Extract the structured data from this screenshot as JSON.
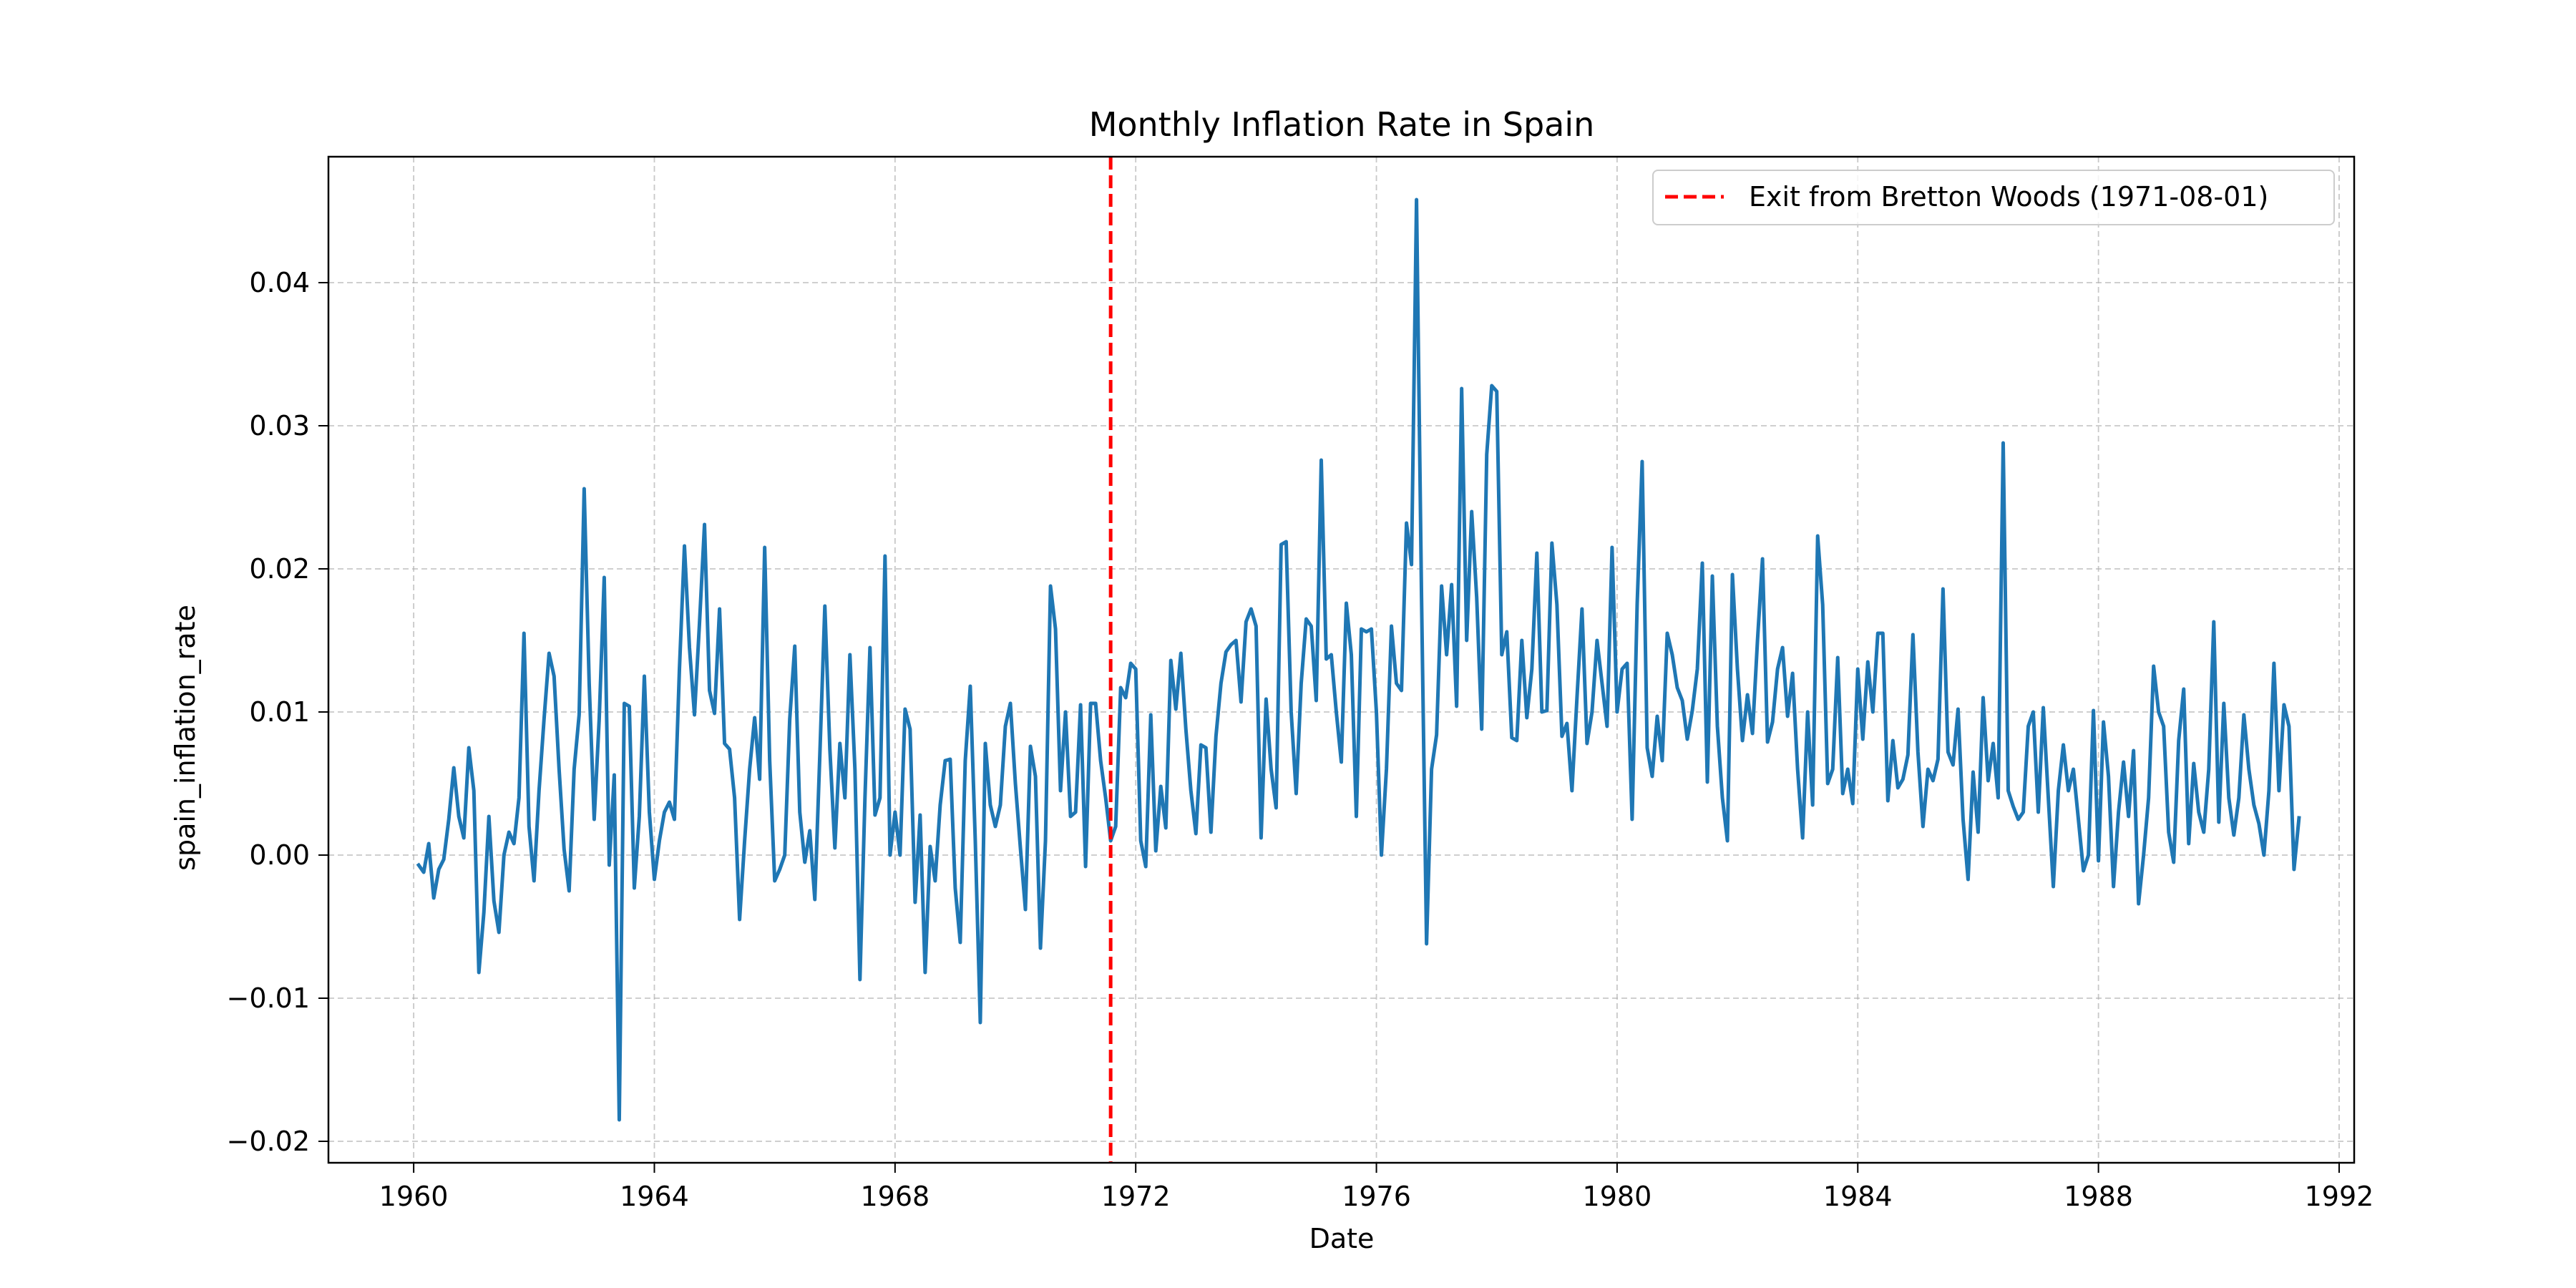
{
  "chart_data": {
    "type": "line",
    "title": "Monthly Inflation Rate in Spain",
    "xlabel": "Date",
    "ylabel": "spain_inflation_rate",
    "xlim": [
      "1958-08-01",
      "1992-04-01"
    ],
    "ylim": [
      -0.0215,
      0.0488
    ],
    "xticks": [
      "1960",
      "1964",
      "1968",
      "1972",
      "1976",
      "1980",
      "1984",
      "1988",
      "1992"
    ],
    "yticks": [
      "−0.02",
      "−0.01",
      "0.00",
      "0.01",
      "0.02",
      "0.03",
      "0.04"
    ],
    "ytick_values": [
      -0.02,
      -0.01,
      0.0,
      0.01,
      0.02,
      0.03,
      0.04
    ],
    "grid": true,
    "grid_style": "dashed",
    "legend_position": "top-right",
    "series": [
      {
        "color": "#1f77b4",
        "x_start": "1960-02",
        "x_end": "1990-12",
        "frequency": "monthly",
        "values": [
          -0.0007,
          -0.0012,
          0.0008,
          -0.003,
          -0.001,
          -0.0003,
          0.0025,
          0.0061,
          0.0027,
          0.0012,
          0.0075,
          0.0045,
          -0.0082,
          -0.004,
          0.0027,
          -0.0032,
          -0.0054,
          0.0,
          0.0016,
          0.0008,
          0.004,
          0.0155,
          0.002,
          -0.0018,
          0.0045,
          0.0095,
          0.0141,
          0.0125,
          0.006,
          0.0004,
          -0.0025,
          0.006,
          0.0098,
          0.0256,
          0.012,
          0.0025,
          0.0095,
          0.0194,
          -0.0007,
          0.0056,
          -0.0185,
          0.0106,
          0.0104,
          -0.0023,
          0.0027,
          0.0125,
          0.003,
          -0.0017,
          0.001,
          0.003,
          0.0037,
          0.0025,
          0.013,
          0.0216,
          0.0145,
          0.0098,
          0.0162,
          0.0231,
          0.0115,
          0.0099,
          0.0172,
          0.0078,
          0.0074,
          0.004,
          -0.0045,
          0.001,
          0.006,
          0.0096,
          0.0053,
          0.0215,
          0.0066,
          -0.0018,
          -0.001,
          0.0,
          0.0095,
          0.0146,
          0.003,
          -0.0005,
          0.0017,
          -0.0031,
          0.007,
          0.0174,
          0.0074,
          0.0005,
          0.0078,
          0.004,
          0.014,
          0.006,
          -0.0087,
          0.004,
          0.0145,
          0.0028,
          0.004,
          0.0209,
          0.0,
          0.003,
          0.0,
          0.0102,
          0.0088,
          -0.0033,
          0.0028,
          -0.0082,
          0.0006,
          -0.0018,
          0.0035,
          0.0066,
          0.0067,
          -0.0023,
          -0.0061,
          0.0066,
          0.0118,
          0.001,
          -0.0117,
          0.0078,
          0.0035,
          0.002,
          0.0035,
          0.009,
          0.0106,
          0.005,
          0.0005,
          -0.0038,
          0.0076,
          0.0055,
          -0.0065,
          0.001,
          0.0188,
          0.0158,
          0.0045,
          0.01,
          0.0027,
          0.003,
          0.0105,
          -0.0008,
          0.0106,
          0.0106,
          0.0066,
          0.004,
          0.001,
          0.002,
          0.0117,
          0.011,
          0.0134,
          0.013,
          0.001,
          -0.0008,
          0.0098,
          0.0003,
          0.0048,
          0.0019,
          0.0136,
          0.0102,
          0.0141,
          0.0088,
          0.0045,
          0.0015,
          0.0077,
          0.0075,
          0.0016,
          0.0083,
          0.012,
          0.0142,
          0.0147,
          0.015,
          0.0107,
          0.0163,
          0.0172,
          0.016,
          0.0012,
          0.0109,
          0.006,
          0.0033,
          0.0217,
          0.0219,
          0.01,
          0.0043,
          0.012,
          0.0165,
          0.016,
          0.0108,
          0.0276,
          0.0137,
          0.014,
          0.01,
          0.0065,
          0.0176,
          0.014,
          0.0027,
          0.0158,
          0.0156,
          0.0158,
          0.01,
          0.0,
          0.006,
          0.016,
          0.012,
          0.0115,
          0.0232,
          0.0203,
          0.0458,
          0.018,
          -0.0062,
          0.006,
          0.0084,
          0.0188,
          0.014,
          0.0189,
          0.0104,
          0.0326,
          0.015,
          0.024,
          0.018,
          0.0088,
          0.028,
          0.0328,
          0.0324,
          0.014,
          0.0156,
          0.0082,
          0.008,
          0.015,
          0.0096,
          0.013,
          0.0211,
          0.01,
          0.0101,
          0.0218,
          0.0175,
          0.0083,
          0.0092,
          0.0045,
          0.011,
          0.0172,
          0.0078,
          0.01,
          0.015,
          0.012,
          0.009,
          0.0215,
          0.01,
          0.013,
          0.0134,
          0.0025,
          0.0175,
          0.0275,
          0.0075,
          0.0055,
          0.0097,
          0.0066,
          0.0155,
          0.014,
          0.0117,
          0.0108,
          0.0081,
          0.0101,
          0.013,
          0.0204,
          0.0051,
          0.0195,
          0.009,
          0.004,
          0.001,
          0.0196,
          0.013,
          0.008,
          0.0112,
          0.0085,
          0.015,
          0.0207,
          0.0079,
          0.0093,
          0.013,
          0.0145,
          0.0097,
          0.0127,
          0.006,
          0.0012,
          0.01,
          0.0035,
          0.0223,
          0.0175,
          0.005,
          0.006,
          0.0138,
          0.0043,
          0.006,
          0.0036,
          0.013,
          0.0081,
          0.0135,
          0.01,
          0.0155,
          0.0155,
          0.0038,
          0.008,
          0.0047,
          0.0053,
          0.007,
          0.0154,
          0.0072,
          0.002,
          0.006,
          0.0052,
          0.0067,
          0.0186,
          0.0072,
          0.0063,
          0.0102,
          0.0025,
          -0.0017,
          0.0058,
          0.0016,
          0.011,
          0.0052,
          0.0078,
          0.004,
          0.0288,
          0.0045,
          0.0034,
          0.0025,
          0.003,
          0.009,
          0.01,
          0.003,
          0.0103,
          0.004,
          -0.0022,
          0.0045,
          0.0077,
          0.0045,
          0.006,
          0.0025,
          -0.0011,
          0.0,
          0.0101,
          -0.0004,
          0.0093,
          0.0055,
          -0.0022,
          0.003,
          0.0065,
          0.0027,
          0.0073,
          -0.0034,
          0.0,
          0.004,
          0.0132,
          0.01,
          0.009,
          0.0016,
          -0.0005,
          0.008,
          0.0116,
          0.0008,
          0.0064,
          0.003,
          0.0016,
          0.006,
          0.0163,
          0.0023,
          0.0106,
          0.004,
          0.0014,
          0.004,
          0.0098,
          0.006,
          0.0035,
          0.0022,
          0.0,
          0.0045,
          0.0134,
          0.0045,
          0.0105,
          0.009,
          -0.001,
          0.0026
        ]
      }
    ],
    "vline": {
      "x": "1971-08-01",
      "color": "#ff0000",
      "style": "dashed",
      "label": "Exit from Bretton Woods (1971-08-01)"
    }
  }
}
